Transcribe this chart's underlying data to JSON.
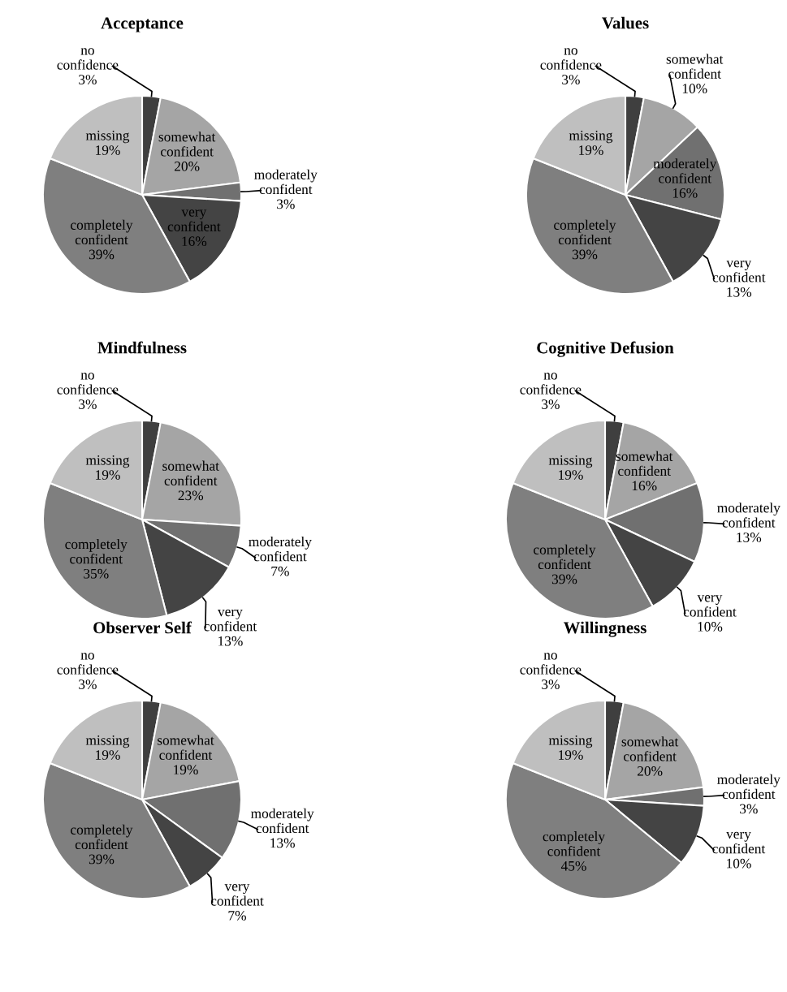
{
  "chart_data": [
    {
      "type": "pie",
      "title": "Acceptance",
      "categories": [
        "no confidence",
        "somewhat confident",
        "moderately confident",
        "very confident",
        "completely confident",
        "missing"
      ],
      "values": [
        3,
        20,
        3,
        16,
        39,
        19
      ],
      "value_labels": [
        "3%",
        "20%",
        "3%",
        "16%",
        "39%",
        "19%"
      ],
      "colors": [
        "#3f3f3f",
        "#a5a5a5",
        "#707070",
        "#444444",
        "#7f7f7f",
        "#bfbfbf"
      ]
    },
    {
      "type": "pie",
      "title": "Values",
      "categories": [
        "no confidence",
        "somewhat confident",
        "moderately confident",
        "very confident",
        "completely confident",
        "missing"
      ],
      "values": [
        3,
        10,
        16,
        13,
        39,
        19
      ],
      "value_labels": [
        "3%",
        "10%",
        "16%",
        "13%",
        "39%",
        "19%"
      ],
      "colors": [
        "#3f3f3f",
        "#a5a5a5",
        "#707070",
        "#444444",
        "#7f7f7f",
        "#bfbfbf"
      ]
    },
    {
      "type": "pie",
      "title": "Mindfulness",
      "categories": [
        "no confidence",
        "somewhat confident",
        "moderately confident",
        "very confident",
        "completely confident",
        "missing"
      ],
      "values": [
        3,
        23,
        7,
        13,
        35,
        19
      ],
      "value_labels": [
        "3%",
        "23%",
        "7%",
        "13%",
        "35%",
        "19%"
      ],
      "colors": [
        "#3f3f3f",
        "#a5a5a5",
        "#707070",
        "#444444",
        "#7f7f7f",
        "#bfbfbf"
      ]
    },
    {
      "type": "pie",
      "title": "Cognitive Defusion",
      "categories": [
        "no confidence",
        "somewhat confident",
        "moderately confident",
        "very confident",
        "completely confident",
        "missing"
      ],
      "values": [
        3,
        16,
        13,
        10,
        39,
        19
      ],
      "value_labels": [
        "3%",
        "16%",
        "13%",
        "10%",
        "39%",
        "19%"
      ],
      "colors": [
        "#3f3f3f",
        "#a5a5a5",
        "#707070",
        "#444444",
        "#7f7f7f",
        "#bfbfbf"
      ]
    },
    {
      "type": "pie",
      "title": "Observer Self",
      "categories": [
        "no confidence",
        "somewhat confident",
        "moderately confident",
        "very confident",
        "completely confident",
        "missing"
      ],
      "values": [
        3,
        19,
        13,
        7,
        39,
        19
      ],
      "value_labels": [
        "3%",
        "19%",
        "13%",
        "7%",
        "39%",
        "19%"
      ],
      "colors": [
        "#3f3f3f",
        "#a5a5a5",
        "#707070",
        "#444444",
        "#7f7f7f",
        "#bfbfbf"
      ]
    },
    {
      "type": "pie",
      "title": "Willingness",
      "categories": [
        "no confidence",
        "somewhat confident",
        "moderately confident",
        "very confident",
        "completely confident",
        "missing"
      ],
      "values": [
        3,
        20,
        3,
        10,
        45,
        19
      ],
      "value_labels": [
        "3%",
        "20%",
        "3%",
        "10%",
        "45%",
        "19%"
      ],
      "colors": [
        "#3f3f3f",
        "#a5a5a5",
        "#707070",
        "#444444",
        "#7f7f7f",
        "#bfbfbf"
      ]
    }
  ]
}
